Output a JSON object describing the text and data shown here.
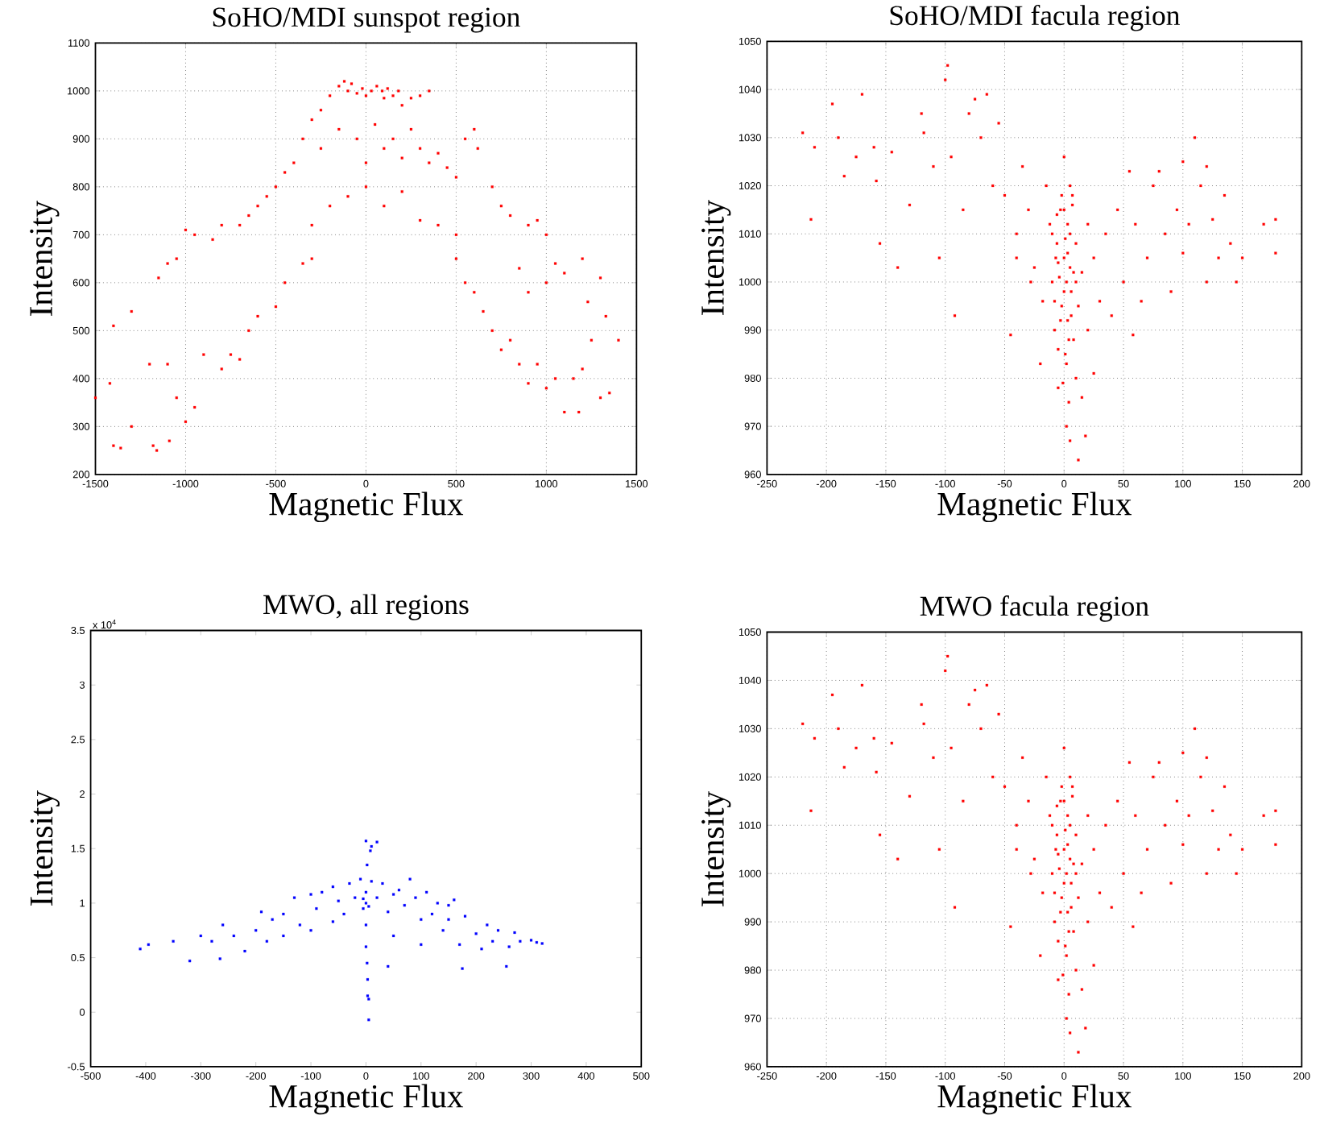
{
  "chart_data": [
    {
      "type": "scatter",
      "title": "SoHO/MDI sunspot region",
      "xlabel": "Magnetic Flux",
      "ylabel": "Intensity",
      "xlim": [
        -1500,
        1500
      ],
      "ylim": [
        200,
        1100
      ],
      "xticks": [
        -1500,
        -1000,
        -500,
        0,
        500,
        1000,
        1500
      ],
      "yticks": [
        200,
        300,
        400,
        500,
        600,
        700,
        800,
        900,
        1000,
        1100
      ],
      "grid": true,
      "marker": "square",
      "series": [
        {
          "color": "#ff0000",
          "x": [
            -150,
            -120,
            -100,
            -80,
            -50,
            -20,
            0,
            30,
            60,
            90,
            100,
            120,
            150,
            180,
            200,
            250,
            300,
            350,
            -200,
            -250,
            -300,
            -350,
            -250,
            -150,
            -50,
            0,
            50,
            100,
            150,
            200,
            250,
            300,
            350,
            400,
            450,
            500,
            550,
            600,
            620,
            -400,
            -450,
            -500,
            -550,
            -600,
            -650,
            -700,
            -800,
            -850,
            -950,
            -1000,
            -1050,
            -1100,
            -1150,
            0,
            -100,
            100,
            200,
            -200,
            300,
            400,
            -300,
            500,
            700,
            750,
            800,
            900,
            950,
            1000,
            1050,
            1100,
            1200,
            1300,
            -1400,
            -1300,
            -1200,
            -1100,
            -1050,
            -1000,
            -950,
            -900,
            -800,
            -750,
            -700,
            -650,
            -600,
            -500,
            -450,
            -350,
            -300,
            -1500,
            -1400,
            -1360,
            -1300,
            -1180,
            -1160,
            -1090,
            -1420,
            500,
            550,
            600,
            650,
            700,
            750,
            800,
            850,
            900,
            950,
            1000,
            1050,
            1100,
            1150,
            1180,
            1200,
            1250,
            1300,
            1350,
            1400,
            1330,
            1230,
            1000,
            900,
            850
          ],
          "values": [
            1010,
            1020,
            1000,
            1015,
            995,
            1005,
            990,
            1000,
            1010,
            1000,
            985,
            1005,
            990,
            1000,
            970,
            985,
            990,
            1000,
            990,
            960,
            940,
            900,
            880,
            920,
            900,
            850,
            930,
            880,
            900,
            860,
            920,
            880,
            850,
            870,
            840,
            820,
            900,
            920,
            880,
            850,
            830,
            800,
            780,
            760,
            740,
            720,
            720,
            690,
            700,
            710,
            650,
            640,
            610,
            800,
            780,
            760,
            790,
            760,
            730,
            720,
            720,
            700,
            800,
            760,
            740,
            720,
            730,
            700,
            640,
            620,
            650,
            610,
            510,
            540,
            430,
            430,
            360,
            310,
            340,
            450,
            420,
            450,
            440,
            500,
            530,
            550,
            600,
            640,
            650,
            360,
            260,
            255,
            300,
            260,
            250,
            270,
            390,
            650,
            600,
            580,
            540,
            500,
            460,
            480,
            430,
            390,
            430,
            380,
            400,
            330,
            400,
            330,
            420,
            480,
            360,
            370,
            480,
            530,
            560,
            600,
            580,
            630
          ]
        }
      ]
    },
    {
      "type": "scatter",
      "title": "SoHO/MDI facula region",
      "xlabel": "Magnetic Flux",
      "ylabel": "Intensity",
      "xlim": [
        -250,
        200
      ],
      "ylim": [
        960,
        1050
      ],
      "xticks": [
        -250,
        -200,
        -150,
        -100,
        -50,
        0,
        50,
        100,
        150,
        200
      ],
      "yticks": [
        960,
        970,
        980,
        990,
        1000,
        1010,
        1020,
        1030,
        1040,
        1050
      ],
      "grid": true,
      "marker": "square",
      "series": [
        {
          "color": "#ff0000",
          "x": [
            -220,
            -210,
            -213,
            -195,
            -190,
            -185,
            -175,
            -170,
            -160,
            -158,
            -155,
            -145,
            -140,
            -130,
            -120,
            -118,
            -110,
            -105,
            -100,
            -98,
            -95,
            -92,
            -85,
            -80,
            -75,
            -70,
            -65,
            -60,
            -55,
            -50,
            -45,
            -40,
            -35,
            -30,
            -25,
            -20,
            -15,
            -12,
            -10,
            -8,
            -6,
            -5,
            -3,
            -2,
            0,
            0,
            1,
            2,
            3,
            3,
            4,
            5,
            5,
            6,
            7,
            8,
            10,
            10,
            12,
            12,
            15,
            15,
            18,
            20,
            20,
            25,
            25,
            30,
            35,
            40,
            45,
            50,
            55,
            58,
            60,
            65,
            70,
            75,
            80,
            85,
            90,
            95,
            100,
            100,
            105,
            110,
            115,
            120,
            120,
            125,
            130,
            135,
            140,
            145,
            150,
            168,
            178,
            178,
            -28,
            -18,
            -40,
            5,
            -5,
            2,
            -10,
            -5,
            0,
            5,
            10,
            -8,
            -3,
            3,
            8,
            0,
            -2,
            2,
            6,
            -6,
            4,
            -4,
            1,
            -1,
            7,
            -7
          ],
          "values": [
            1031,
            1028,
            1013,
            1037,
            1030,
            1022,
            1026,
            1039,
            1028,
            1021,
            1008,
            1027,
            1003,
            1016,
            1035,
            1031,
            1024,
            1005,
            1042,
            1045,
            1026,
            993,
            1015,
            1035,
            1038,
            1030,
            1039,
            1020,
            1033,
            1018,
            989,
            1010,
            1024,
            1015,
            1003,
            983,
            1020,
            1012,
            1000,
            990,
            1008,
            978,
            1015,
            995,
            1005,
            1026,
            985,
            1000,
            992,
            1012,
            975,
            1003,
            967,
            998,
            1018,
            988,
            1008,
            980,
            963,
            995,
            1002,
            976,
            968,
            990,
            1012,
            981,
            1005,
            996,
            1010,
            993,
            1015,
            1000,
            1023,
            989,
            1012,
            996,
            1005,
            1020,
            1023,
            1010,
            998,
            1015,
            1025,
            1006,
            1012,
            1030,
            1020,
            1000,
            1024,
            1013,
            1005,
            1018,
            1008,
            1000,
            1005,
            1012,
            1013,
            1006,
            1000,
            996,
            1005,
            1020,
            986,
            970,
            1010,
            1004,
            1015,
            1010,
            1000,
            996,
            992,
            1006,
            1002,
            998,
            1018,
            983,
            993,
            1014,
            988,
            1001,
            1009,
            979,
            1016,
            1005
          ]
        }
      ]
    },
    {
      "type": "scatter",
      "title": "MWO, all regions",
      "xlabel": "Magnetic Flux",
      "ylabel": "Intensity",
      "annotations": [
        "x 10$^{4}$"
      ],
      "xlim": [
        -500,
        500
      ],
      "ylim": [
        -0.5,
        3.5
      ],
      "xticks": [
        -500,
        -400,
        -300,
        -200,
        -100,
        0,
        100,
        200,
        300,
        400,
        500
      ],
      "yticks": [
        -0.5,
        0,
        0.5,
        1,
        1.5,
        2,
        2.5,
        3,
        3.5
      ],
      "marker": "square",
      "series": [
        {
          "color": "#0000ff",
          "x": [
            -410,
            -395,
            -350,
            -320,
            -300,
            -280,
            -265,
            -260,
            -240,
            -220,
            -200,
            -190,
            -180,
            -170,
            -150,
            -130,
            -120,
            -100,
            -90,
            -80,
            -60,
            -50,
            -40,
            -30,
            -20,
            -10,
            -5,
            0,
            0,
            0,
            2,
            3,
            3,
            5,
            5,
            2,
            0,
            10,
            20,
            8,
            10,
            20,
            30,
            40,
            40,
            50,
            60,
            70,
            80,
            90,
            100,
            100,
            110,
            120,
            130,
            140,
            150,
            160,
            170,
            175,
            180,
            200,
            210,
            220,
            230,
            240,
            255,
            260,
            270,
            280,
            300,
            310,
            320,
            -150,
            -100,
            50,
            -60,
            150,
            0,
            -5,
            5
          ],
          "values": [
            0.58,
            0.62,
            0.65,
            0.47,
            0.7,
            0.65,
            0.49,
            0.8,
            0.7,
            0.56,
            0.75,
            0.92,
            0.65,
            0.85,
            0.9,
            1.05,
            0.8,
            1.08,
            0.95,
            1.1,
            1.15,
            1.02,
            0.9,
            1.18,
            1.05,
            1.22,
            0.95,
            1.1,
            0.8,
            0.6,
            0.45,
            0.3,
            0.15,
            0.12,
            -0.07,
            1.35,
            1.57,
            1.52,
            1.56,
            1.48,
            1.2,
            1.05,
            1.18,
            0.92,
            0.42,
            1.08,
            1.12,
            0.98,
            1.22,
            1.05,
            0.85,
            0.62,
            1.1,
            0.9,
            1.0,
            0.75,
            0.85,
            1.03,
            0.62,
            0.4,
            0.88,
            0.72,
            0.58,
            0.8,
            0.65,
            0.75,
            0.42,
            0.6,
            0.73,
            0.65,
            0.66,
            0.64,
            0.63,
            0.7,
            0.75,
            0.7,
            0.83,
            0.98,
            1.0,
            1.04,
            0.97
          ]
        }
      ]
    },
    {
      "type": "scatter",
      "title": "MWO facula region",
      "xlabel": "Magnetic Flux",
      "ylabel": "Intensity",
      "xlim": [
        -250,
        200
      ],
      "ylim": [
        960,
        1050
      ],
      "xticks": [
        -250,
        -200,
        -150,
        -100,
        -50,
        0,
        50,
        100,
        150,
        200
      ],
      "yticks": [
        960,
        970,
        980,
        990,
        1000,
        1010,
        1020,
        1030,
        1040,
        1050
      ],
      "grid": true,
      "marker": "square",
      "series": [
        {
          "color": "#ff0000",
          "x": [
            -220,
            -210,
            -213,
            -195,
            -190,
            -185,
            -175,
            -170,
            -160,
            -158,
            -155,
            -145,
            -140,
            -130,
            -120,
            -118,
            -110,
            -105,
            -100,
            -98,
            -95,
            -92,
            -85,
            -80,
            -75,
            -70,
            -65,
            -60,
            -55,
            -50,
            -45,
            -40,
            -35,
            -30,
            -25,
            -20,
            -15,
            -12,
            -10,
            -8,
            -6,
            -5,
            -3,
            -2,
            0,
            0,
            1,
            2,
            3,
            3,
            4,
            5,
            5,
            6,
            7,
            8,
            10,
            10,
            12,
            12,
            15,
            15,
            18,
            20,
            20,
            25,
            25,
            30,
            35,
            40,
            45,
            50,
            55,
            58,
            60,
            65,
            70,
            75,
            80,
            85,
            90,
            95,
            100,
            100,
            105,
            110,
            115,
            120,
            120,
            125,
            130,
            135,
            140,
            145,
            150,
            168,
            178,
            178,
            -28,
            -18,
            -40,
            5,
            -5,
            2,
            -10,
            -5,
            0,
            5,
            10,
            -8,
            -3,
            3,
            8,
            0,
            -2,
            2,
            6,
            -6,
            4,
            -4,
            1,
            -1,
            7,
            -7
          ],
          "values": [
            1031,
            1028,
            1013,
            1037,
            1030,
            1022,
            1026,
            1039,
            1028,
            1021,
            1008,
            1027,
            1003,
            1016,
            1035,
            1031,
            1024,
            1005,
            1042,
            1045,
            1026,
            993,
            1015,
            1035,
            1038,
            1030,
            1039,
            1020,
            1033,
            1018,
            989,
            1010,
            1024,
            1015,
            1003,
            983,
            1020,
            1012,
            1000,
            990,
            1008,
            978,
            1015,
            995,
            1005,
            1026,
            985,
            1000,
            992,
            1012,
            975,
            1003,
            967,
            998,
            1018,
            988,
            1008,
            980,
            963,
            995,
            1002,
            976,
            968,
            990,
            1012,
            981,
            1005,
            996,
            1010,
            993,
            1015,
            1000,
            1023,
            989,
            1012,
            996,
            1005,
            1020,
            1023,
            1010,
            998,
            1015,
            1025,
            1006,
            1012,
            1030,
            1020,
            1000,
            1024,
            1013,
            1005,
            1018,
            1008,
            1000,
            1005,
            1012,
            1013,
            1006,
            1000,
            996,
            1005,
            1020,
            986,
            970,
            1010,
            1004,
            1015,
            1010,
            1000,
            996,
            992,
            1006,
            1002,
            998,
            1018,
            983,
            993,
            1014,
            988,
            1001,
            1009,
            979,
            1016,
            1005
          ]
        }
      ]
    }
  ]
}
